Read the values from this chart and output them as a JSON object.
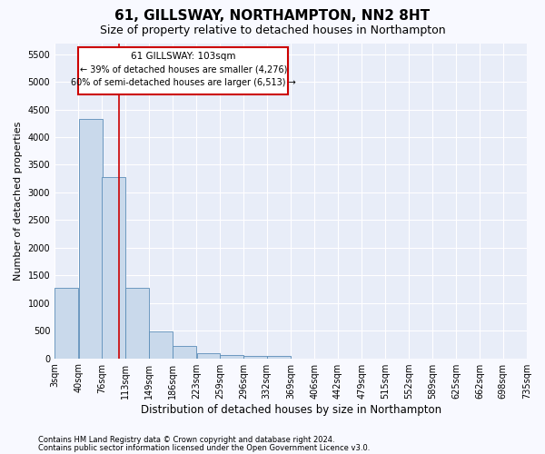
{
  "title": "61, GILLSWAY, NORTHAMPTON, NN2 8HT",
  "subtitle": "Size of property relative to detached houses in Northampton",
  "xlabel": "Distribution of detached houses by size in Northampton",
  "ylabel": "Number of detached properties",
  "footnote1": "Contains HM Land Registry data © Crown copyright and database right 2024.",
  "footnote2": "Contains public sector information licensed under the Open Government Licence v3.0.",
  "annotation_title": "61 GILLSWAY: 103sqm",
  "annotation_line1": "← 39% of detached houses are smaller (4,276)",
  "annotation_line2": "60% of semi-detached houses are larger (6,513) →",
  "bar_color": "#c9d9eb",
  "bar_edge_color": "#5b8db8",
  "vline_color": "#cc0000",
  "vline_x": 103,
  "fig_background": "#f8f9ff",
  "plot_background": "#e8edf8",
  "grid_color": "#ffffff",
  "categories": [
    "3sqm",
    "40sqm",
    "76sqm",
    "113sqm",
    "149sqm",
    "186sqm",
    "223sqm",
    "259sqm",
    "296sqm",
    "332sqm",
    "369sqm",
    "406sqm",
    "442sqm",
    "479sqm",
    "515sqm",
    "552sqm",
    "589sqm",
    "625sqm",
    "662sqm",
    "698sqm",
    "735sqm"
  ],
  "bin_edges": [
    3,
    40,
    76,
    113,
    149,
    186,
    223,
    259,
    296,
    332,
    369,
    406,
    442,
    479,
    515,
    552,
    589,
    625,
    662,
    698,
    735
  ],
  "bin_width": 37,
  "values": [
    1270,
    4330,
    3270,
    1280,
    490,
    215,
    90,
    65,
    50,
    50,
    0,
    0,
    0,
    0,
    0,
    0,
    0,
    0,
    0,
    0
  ],
  "ylim": [
    0,
    5700
  ],
  "yticks": [
    0,
    500,
    1000,
    1500,
    2000,
    2500,
    3000,
    3500,
    4000,
    4500,
    5000,
    5500
  ],
  "title_fontsize": 11,
  "subtitle_fontsize": 9,
  "tick_fontsize": 7,
  "ylabel_fontsize": 8,
  "xlabel_fontsize": 8.5,
  "footnote_fontsize": 6
}
